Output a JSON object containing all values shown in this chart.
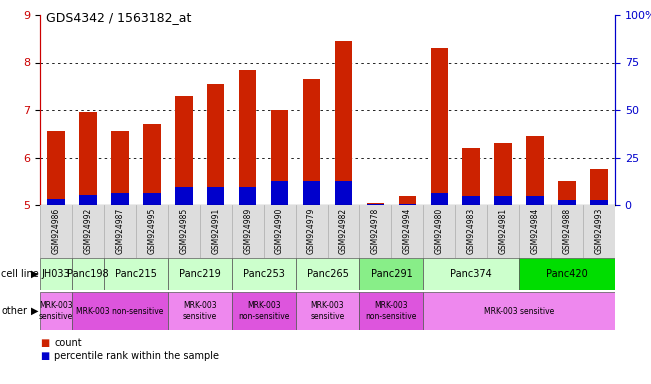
{
  "title": "GDS4342 / 1563182_at",
  "samples": [
    "GSM924986",
    "GSM924992",
    "GSM924987",
    "GSM924995",
    "GSM924985",
    "GSM924991",
    "GSM924989",
    "GSM924990",
    "GSM924979",
    "GSM924982",
    "GSM924978",
    "GSM924994",
    "GSM924980",
    "GSM924983",
    "GSM924981",
    "GSM924984",
    "GSM924988",
    "GSM924993"
  ],
  "counts": [
    6.55,
    6.95,
    6.55,
    6.7,
    7.3,
    7.55,
    7.85,
    7.0,
    7.65,
    8.45,
    5.05,
    5.2,
    8.3,
    6.2,
    6.3,
    6.45,
    5.5,
    5.75
  ],
  "percentile_heights": [
    0.12,
    0.22,
    0.25,
    0.25,
    0.38,
    0.38,
    0.38,
    0.5,
    0.5,
    0.5,
    0.02,
    0.02,
    0.25,
    0.18,
    0.18,
    0.18,
    0.1,
    0.1
  ],
  "ylim_left": [
    5.0,
    9.0
  ],
  "ylim_right": [
    0,
    100
  ],
  "yticks_left": [
    5,
    6,
    7,
    8,
    9
  ],
  "yticks_right": [
    0,
    25,
    50,
    75,
    100
  ],
  "bar_color_red": "#cc2200",
  "bar_color_blue": "#0000cc",
  "cell_lines": [
    {
      "label": "JH033",
      "start": 0,
      "end": 1,
      "color": "#ccffcc"
    },
    {
      "label": "Panc198",
      "start": 1,
      "end": 2,
      "color": "#ccffcc"
    },
    {
      "label": "Panc215",
      "start": 2,
      "end": 4,
      "color": "#ccffcc"
    },
    {
      "label": "Panc219",
      "start": 4,
      "end": 6,
      "color": "#ccffcc"
    },
    {
      "label": "Panc253",
      "start": 6,
      "end": 8,
      "color": "#ccffcc"
    },
    {
      "label": "Panc265",
      "start": 8,
      "end": 10,
      "color": "#ccffcc"
    },
    {
      "label": "Panc291",
      "start": 10,
      "end": 12,
      "color": "#88ee88"
    },
    {
      "label": "Panc374",
      "start": 12,
      "end": 15,
      "color": "#ccffcc"
    },
    {
      "label": "Panc420",
      "start": 15,
      "end": 18,
      "color": "#00dd00"
    }
  ],
  "other_regions": [
    {
      "label": "MRK-003\nsensitive",
      "start": 0,
      "end": 1,
      "color": "#ee88ee"
    },
    {
      "label": "MRK-003 non-sensitive",
      "start": 1,
      "end": 4,
      "color": "#dd55dd"
    },
    {
      "label": "MRK-003\nsensitive",
      "start": 4,
      "end": 6,
      "color": "#ee88ee"
    },
    {
      "label": "MRK-003\nnon-sensitive",
      "start": 6,
      "end": 8,
      "color": "#dd55dd"
    },
    {
      "label": "MRK-003\nsensitive",
      "start": 8,
      "end": 10,
      "color": "#ee88ee"
    },
    {
      "label": "MRK-003\nnon-sensitive",
      "start": 10,
      "end": 12,
      "color": "#dd55dd"
    },
    {
      "label": "MRK-003 sensitive",
      "start": 12,
      "end": 18,
      "color": "#ee88ee"
    }
  ],
  "base_value": 5.0,
  "bar_width": 0.55,
  "tick_bg_color": "#dddddd",
  "left_axis_color": "#cc0000",
  "right_axis_color": "#0000cc"
}
